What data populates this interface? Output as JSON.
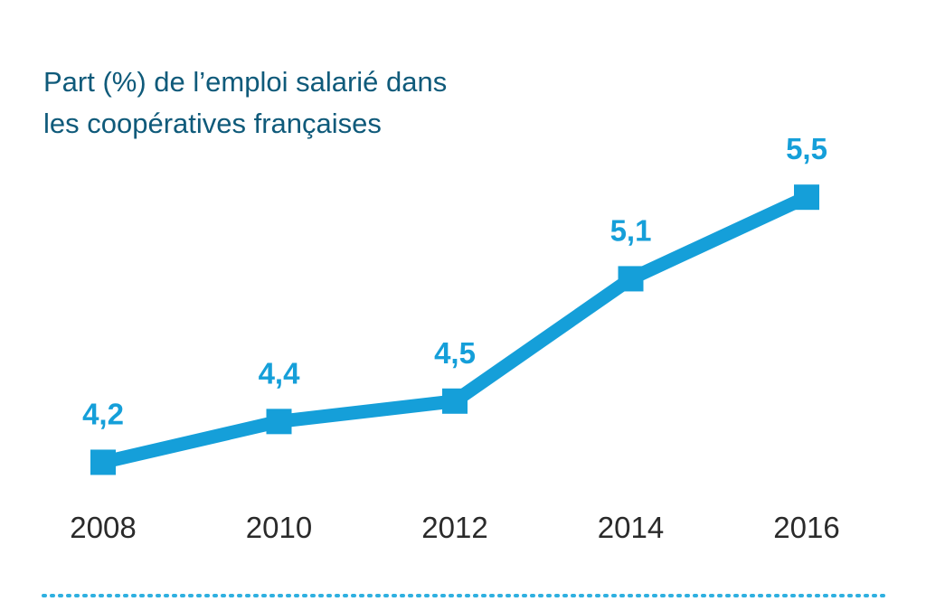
{
  "title_lines": [
    "Part (%) de l’emploi salarié dans",
    "les coopératives françaises"
  ],
  "colors": {
    "title": "#0f5a7a",
    "series": "#159fd9",
    "ticks": "#2a2a2a",
    "divider": "#2fb0e0"
  },
  "chart_data": {
    "type": "line",
    "title": "Part (%) de l’emploi salarié dans les coopératives françaises",
    "x": [
      "2008",
      "2010",
      "2012",
      "2014",
      "2016"
    ],
    "series": [
      {
        "values": [
          4.2,
          4.4,
          4.5,
          5.1,
          5.5
        ],
        "labels": [
          "4,2",
          "4,4",
          "4,5",
          "5,1",
          "5,5"
        ]
      }
    ],
    "ylim": [
      3.8,
      5.8
    ],
    "xlabel": "",
    "ylabel": "",
    "grid": false,
    "marker": "square"
  }
}
